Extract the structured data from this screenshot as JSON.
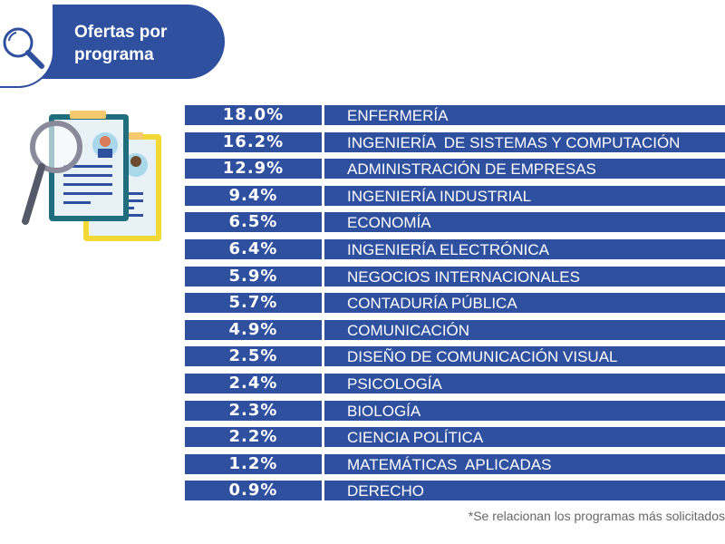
{
  "header": {
    "title_line1": "Ofertas por",
    "title_line2": "programa",
    "icon": "search-icon"
  },
  "colors": {
    "primary": "#2f4f9f",
    "text": "#ffffff",
    "footnote": "#666666"
  },
  "chart_data": {
    "type": "table",
    "title": "Ofertas por programa",
    "rows": [
      {
        "value": "18.0%",
        "program": "ENFERMERÍA"
      },
      {
        "value": "16.2%",
        "program": "INGENIERÍA  DE SISTEMAS Y COMPUTACIÓN"
      },
      {
        "value": "12.9%",
        "program": "ADMINISTRACIÓN DE EMPRESAS"
      },
      {
        "value": "9.4%",
        "program": "INGENIERÍA INDUSTRIAL"
      },
      {
        "value": "6.5%",
        "program": "ECONOMÍA"
      },
      {
        "value": "6.4%",
        "program": "INGENIERÍA ELECTRÓNICA"
      },
      {
        "value": "5.9%",
        "program": "NEGOCIOS INTERNACIONALES"
      },
      {
        "value": "5.7%",
        "program": "CONTADURÍA PÚBLICA"
      },
      {
        "value": "4.9%",
        "program": "COMUNICACIÓN"
      },
      {
        "value": "2.5%",
        "program": "DISEÑO DE COMUNICACIÓN VISUAL"
      },
      {
        "value": "2.4%",
        "program": "PSICOLOGÍA"
      },
      {
        "value": "2.3%",
        "program": "BIOLOGÍA"
      },
      {
        "value": "2.2%",
        "program": "CIENCIA POLÍTICA"
      },
      {
        "value": "1.2%",
        "program": "MATEMÁTICAS  APLICADAS"
      },
      {
        "value": "0.9%",
        "program": "DERECHO"
      }
    ]
  },
  "footnote": "*Se relacionan los programas más solicitados"
}
